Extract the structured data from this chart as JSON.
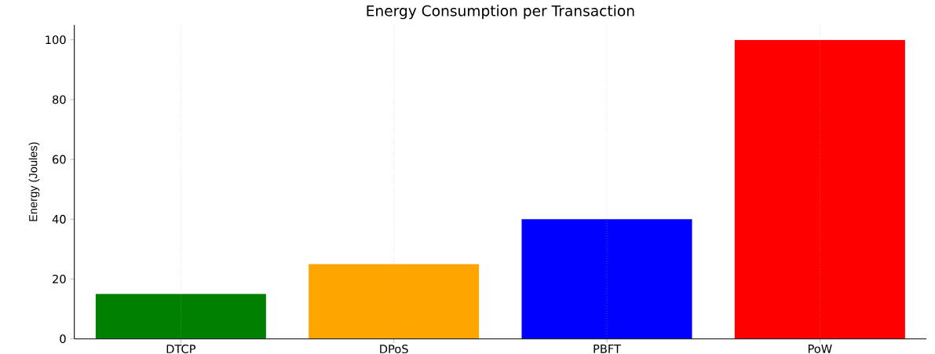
{
  "chart_data": {
    "type": "bar",
    "title": "Energy Consumption per Transaction",
    "ylabel": "Energy (Joules)",
    "categories": [
      "DTCP",
      "DPoS",
      "PBFT",
      "PoW"
    ],
    "values": [
      15,
      25,
      40,
      100
    ],
    "colors": [
      "#008000",
      "#ffa500",
      "#0000ff",
      "#ff0000"
    ],
    "ylim": [
      0,
      105
    ],
    "yticks": [
      0,
      20,
      40,
      60,
      80,
      100
    ],
    "grid": "x"
  }
}
